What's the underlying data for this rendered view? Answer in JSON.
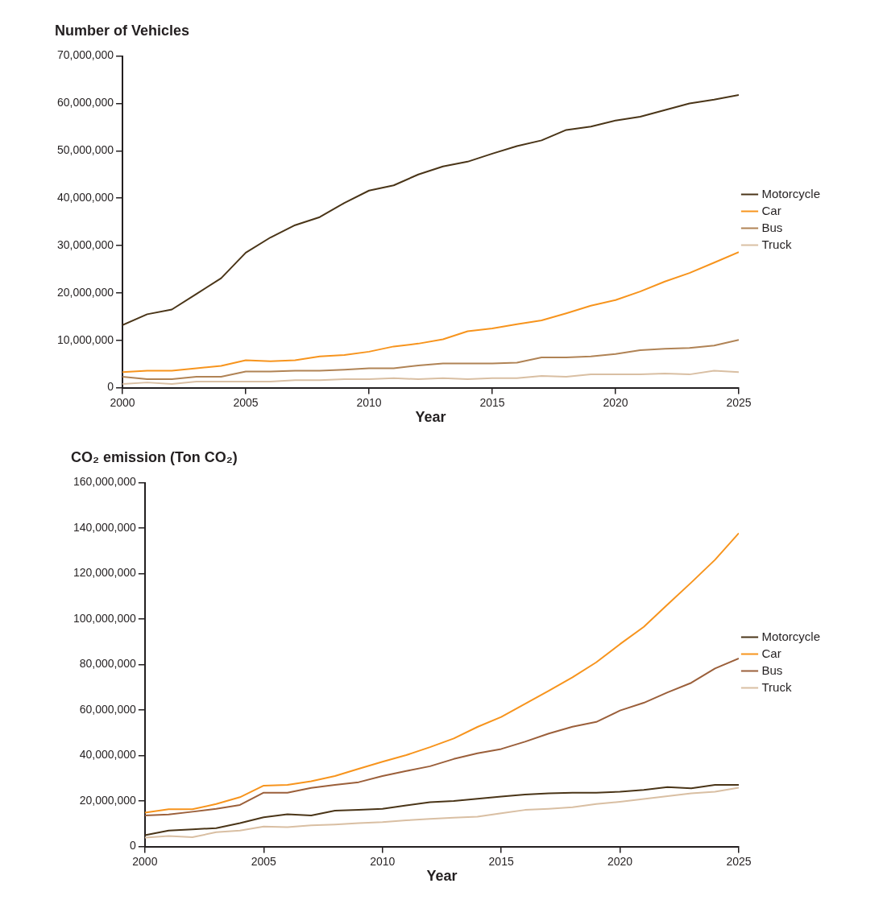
{
  "chart_data": [
    {
      "type": "line",
      "title": "Number of Vehicles",
      "xlabel": "Year",
      "x": [
        2000,
        2001,
        2002,
        2003,
        2004,
        2005,
        2006,
        2007,
        2008,
        2009,
        2010,
        2011,
        2012,
        2013,
        2014,
        2015,
        2016,
        2017,
        2018,
        2019,
        2020,
        2021,
        2022,
        2023,
        2024,
        2025
      ],
      "xlim": [
        2000,
        2025
      ],
      "xticks": [
        2000,
        2005,
        2010,
        2015,
        2020,
        2025
      ],
      "ylim": [
        0,
        70000000
      ],
      "yticks": [
        0,
        {
          "value": 10000000,
          "label": "10,000,000"
        },
        {
          "value": 20000000,
          "label": "20,000,000"
        },
        {
          "value": 30000000,
          "label": "30,000,000"
        },
        {
          "value": 40000000,
          "label": "40,000,000"
        },
        {
          "value": 50000000,
          "label": "50,000,000"
        },
        {
          "value": 60000000,
          "label": "60,000,000"
        },
        {
          "value": 70000000,
          "label": "70,000,000"
        }
      ],
      "grid": false,
      "legend": "right",
      "marker": "none",
      "line_style": "solid",
      "series": [
        {
          "name": "Motorcycle",
          "color": "#4a3518",
          "values": [
            13200000,
            15500000,
            16500000,
            19800000,
            23100000,
            28500000,
            31700000,
            34300000,
            36000000,
            39000000,
            41600000,
            42700000,
            45000000,
            46700000,
            47700000,
            49400000,
            51000000,
            52200000,
            54400000,
            55100000,
            56400000,
            57200000,
            58600000,
            60000000,
            60800000,
            61800000
          ]
        },
        {
          "name": "Car",
          "color": "#f7941d",
          "values": [
            3300000,
            3600000,
            3600000,
            4100000,
            4600000,
            5800000,
            5600000,
            5800000,
            6600000,
            6900000,
            7600000,
            8700000,
            9300000,
            10200000,
            11900000,
            12500000,
            13400000,
            14200000,
            15700000,
            17300000,
            18500000,
            20300000,
            22400000,
            24200000,
            26400000,
            28600000
          ]
        },
        {
          "name": "Bus",
          "color": "#b08355",
          "values": [
            2300000,
            1800000,
            1800000,
            2300000,
            2300000,
            3400000,
            3400000,
            3600000,
            3600000,
            3800000,
            4100000,
            4100000,
            4700000,
            5100000,
            5100000,
            5100000,
            5300000,
            6400000,
            6400000,
            6600000,
            7100000,
            7900000,
            8200000,
            8400000,
            8900000,
            10100000
          ]
        },
        {
          "name": "Truck",
          "color": "#d9bfa3",
          "values": [
            800000,
            1100000,
            800000,
            1300000,
            1300000,
            1300000,
            1300000,
            1600000,
            1600000,
            1800000,
            1800000,
            2000000,
            1800000,
            2000000,
            1800000,
            2000000,
            2000000,
            2500000,
            2300000,
            2800000,
            2800000,
            2800000,
            3000000,
            2800000,
            3600000,
            3300000
          ]
        }
      ]
    },
    {
      "type": "line",
      "title": "CO₂ emission (Ton CO₂)",
      "xlabel": "Year",
      "x": [
        2000,
        2001,
        2002,
        2003,
        2004,
        2005,
        2006,
        2007,
        2008,
        2009,
        2010,
        2011,
        2012,
        2013,
        2014,
        2015,
        2016,
        2017,
        2018,
        2019,
        2020,
        2021,
        2022,
        2023,
        2024,
        2025
      ],
      "xlim": [
        2000,
        2025
      ],
      "xticks": [
        2000,
        2005,
        2010,
        2015,
        2020,
        2025
      ],
      "ylim": [
        0,
        160000000
      ],
      "yticks": [
        0,
        {
          "value": 20000000,
          "label": "20,000,000"
        },
        {
          "value": 40000000,
          "label": "40,000,000"
        },
        {
          "value": 60000000,
          "label": "60,000,000"
        },
        {
          "value": 80000000,
          "label": "80,000,000"
        },
        {
          "value": 100000000,
          "label": "100,000,000"
        },
        {
          "value": 120000000,
          "label": "120,000,000"
        },
        {
          "value": 140000000,
          "label": "140,000,000"
        },
        {
          "value": 160000000,
          "label": "160,000,000"
        }
      ],
      "grid": false,
      "legend": "right",
      "marker": "none",
      "line_style": "solid",
      "series": [
        {
          "name": "Motorcycle",
          "color": "#4a3518",
          "values": [
            5000000,
            7000000,
            7600000,
            8100000,
            10300000,
            12900000,
            14200000,
            13700000,
            15800000,
            16100000,
            16600000,
            18100000,
            19500000,
            20000000,
            21000000,
            22000000,
            22900000,
            23400000,
            23700000,
            23700000,
            24100000,
            24900000,
            26100000,
            25600000,
            27100000,
            27100000
          ]
        },
        {
          "name": "Car",
          "color": "#f7941d",
          "values": [
            14900000,
            16400000,
            16400000,
            18700000,
            21700000,
            26800000,
            27100000,
            28700000,
            31000000,
            34200000,
            37300000,
            40200000,
            43700000,
            47500000,
            52600000,
            57000000,
            62700000,
            68500000,
            74400000,
            81000000,
            89000000,
            96600000,
            106400000,
            116100000,
            126100000,
            137800000
          ]
        },
        {
          "name": "Bus",
          "color": "#9b5f3a",
          "values": [
            13700000,
            14100000,
            15300000,
            16600000,
            18300000,
            23700000,
            23700000,
            25800000,
            27100000,
            28300000,
            31000000,
            33200000,
            35300000,
            38500000,
            41000000,
            42900000,
            46100000,
            49700000,
            52700000,
            54800000,
            59800000,
            63200000,
            67800000,
            72000000,
            78300000,
            82700000
          ]
        },
        {
          "name": "Truck",
          "color": "#d9bfa3",
          "values": [
            3900000,
            4600000,
            4100000,
            6300000,
            7000000,
            8800000,
            8500000,
            9300000,
            9700000,
            10300000,
            10700000,
            11500000,
            12200000,
            12700000,
            13100000,
            14600000,
            16100000,
            16600000,
            17300000,
            18700000,
            19700000,
            20900000,
            22200000,
            23400000,
            24100000,
            25900000
          ]
        }
      ]
    }
  ]
}
